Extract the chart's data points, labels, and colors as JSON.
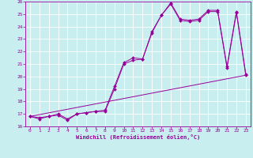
{
  "xlabel": "Windchill (Refroidissement éolien,°C)",
  "background_color": "#c8eef0",
  "line_color": "#990099",
  "grid_color": "#ffffff",
  "xlim": [
    -0.5,
    23.5
  ],
  "ylim": [
    16,
    26
  ],
  "xticks": [
    0,
    1,
    2,
    3,
    4,
    5,
    6,
    7,
    8,
    9,
    10,
    11,
    12,
    13,
    14,
    15,
    16,
    17,
    18,
    19,
    20,
    21,
    22,
    23
  ],
  "yticks": [
    16,
    17,
    18,
    19,
    20,
    21,
    22,
    23,
    24,
    25,
    26
  ],
  "line1_x": [
    0,
    1,
    2,
    3,
    4,
    5,
    6,
    7,
    8,
    9,
    10,
    11,
    12,
    13,
    14,
    15,
    16,
    17,
    18,
    19,
    20,
    21,
    22,
    23
  ],
  "line1_y": [
    16.8,
    16.6,
    16.8,
    16.9,
    16.5,
    17.0,
    17.1,
    17.2,
    17.3,
    19.2,
    21.1,
    21.5,
    21.4,
    23.6,
    24.9,
    25.8,
    24.5,
    24.4,
    24.5,
    25.2,
    25.2,
    20.7,
    25.1,
    20.1
  ],
  "line2_x": [
    0,
    1,
    2,
    3,
    4,
    5,
    6,
    7,
    8,
    9,
    10,
    11,
    12,
    13,
    14,
    15,
    16,
    17,
    18,
    19,
    20,
    21,
    22,
    23
  ],
  "line2_y": [
    16.8,
    16.7,
    16.8,
    17.0,
    16.6,
    17.0,
    17.1,
    17.2,
    17.2,
    19.0,
    21.0,
    21.3,
    21.4,
    23.5,
    24.9,
    25.9,
    24.6,
    24.5,
    24.6,
    25.3,
    25.3,
    20.8,
    25.2,
    20.2
  ],
  "line3_x": [
    0,
    23
  ],
  "line3_y": [
    16.8,
    20.1
  ]
}
